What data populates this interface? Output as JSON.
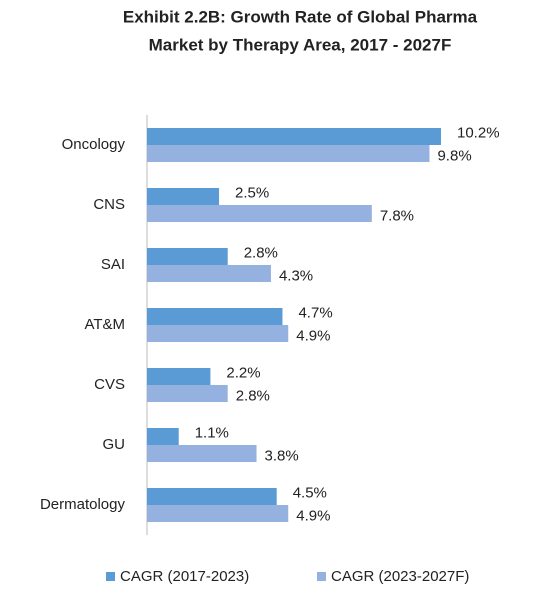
{
  "chart_data": {
    "type": "barh",
    "title": [
      "Exhibit 2.2B: Growth Rate of Global Pharma",
      "Market by Therapy Area, 2017 - 2027F"
    ],
    "categories": [
      "Oncology",
      "CNS",
      "SAI",
      "AT&M",
      "CVS",
      "GU",
      "Dermatology"
    ],
    "series": [
      {
        "name": "CAGR (2017-2023)",
        "color": "#5b9bd5",
        "values": [
          10.2,
          2.5,
          2.8,
          4.7,
          2.2,
          1.1,
          4.5
        ],
        "value_labels": [
          "10.2%",
          "2.5%",
          "2.8%",
          "4.7%",
          "2.2%",
          "1.1%",
          "4.5%"
        ]
      },
      {
        "name": "CAGR (2023-2027F)",
        "color": "#95b1e0",
        "values": [
          9.8,
          7.8,
          4.3,
          4.9,
          2.8,
          3.8,
          4.9
        ],
        "value_labels": [
          "9.8%",
          "7.8%",
          "4.3%",
          "4.9%",
          "2.8%",
          "3.8%",
          "4.9%"
        ]
      }
    ],
    "legend": "bottom"
  }
}
